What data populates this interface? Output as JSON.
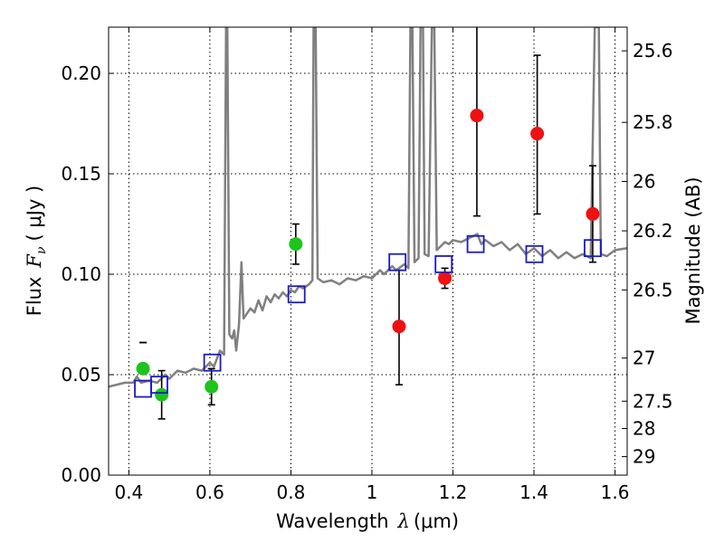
{
  "chart_data": {
    "type": "scatter",
    "title": "",
    "xlabel_prefix": "Wavelength",
    "xlabel_symbol": "λ",
    "xlabel_unit": "(μm)",
    "ylabel_prefix": "Flux",
    "ylabel_symbol": "F",
    "ylabel_subscript": "ν",
    "ylabel_unit": "( μJy )",
    "y2label": "Magnitude (AB)",
    "xlim": [
      0.35,
      1.63
    ],
    "ylim": [
      0.0,
      0.223
    ],
    "grid": true,
    "x_ticks": [
      0.4,
      0.6,
      0.8,
      1.0,
      1.2,
      1.4,
      1.6
    ],
    "x_tick_labels": [
      "0.4",
      "0.6",
      "0.8",
      "1",
      "1.2",
      "1.4",
      "1.6"
    ],
    "y_ticks": [
      0.0,
      0.05,
      0.1,
      0.15,
      0.2
    ],
    "y_tick_labels": [
      "0.00",
      "0.05",
      "0.10",
      "0.15",
      "0.20"
    ],
    "y2_ticks": [
      {
        "label": "25.6",
        "flux": 0.2112
      },
      {
        "label": "25.8",
        "flux": 0.1756
      },
      {
        "label": "26",
        "flux": 0.1462
      },
      {
        "label": "26.2",
        "flux": 0.1216
      },
      {
        "label": "26.5",
        "flux": 0.0922
      },
      {
        "label": "27",
        "flux": 0.0583
      },
      {
        "label": "27.5",
        "flux": 0.0368
      },
      {
        "label": "28",
        "flux": 0.0232
      },
      {
        "label": "29",
        "flux": 0.0092
      }
    ],
    "colors": {
      "model": "#808080",
      "green": "#1ec31e",
      "red": "#ee1111",
      "box": "#1a1acc",
      "errorbar": "#000000"
    },
    "series": [
      {
        "kind": "line",
        "points": [
          [
            0.35,
            0.044
          ],
          [
            0.37,
            0.045
          ],
          [
            0.39,
            0.046
          ],
          [
            0.41,
            0.046
          ],
          [
            0.42,
            0.049
          ],
          [
            0.43,
            0.046
          ],
          [
            0.45,
            0.047
          ],
          [
            0.47,
            0.046
          ],
          [
            0.49,
            0.05
          ],
          [
            0.5,
            0.048
          ],
          [
            0.52,
            0.052
          ],
          [
            0.54,
            0.051
          ],
          [
            0.56,
            0.053
          ],
          [
            0.58,
            0.052
          ],
          [
            0.6,
            0.056
          ],
          [
            0.61,
            0.054
          ],
          [
            0.625,
            0.062
          ],
          [
            0.635,
            0.06
          ],
          [
            0.64,
            0.223
          ],
          [
            0.643,
            0.223
          ],
          [
            0.648,
            0.07
          ],
          [
            0.655,
            0.068
          ],
          [
            0.66,
            0.072
          ],
          [
            0.665,
            0.062
          ],
          [
            0.672,
            0.075
          ],
          [
            0.678,
            0.106
          ],
          [
            0.683,
            0.078
          ],
          [
            0.69,
            0.08
          ],
          [
            0.7,
            0.083
          ],
          [
            0.71,
            0.081
          ],
          [
            0.72,
            0.087
          ],
          [
            0.73,
            0.082
          ],
          [
            0.74,
            0.089
          ],
          [
            0.75,
            0.086
          ],
          [
            0.76,
            0.09
          ],
          [
            0.77,
            0.088
          ],
          [
            0.78,
            0.091
          ],
          [
            0.79,
            0.089
          ],
          [
            0.8,
            0.092
          ],
          [
            0.81,
            0.091
          ],
          [
            0.82,
            0.094
          ],
          [
            0.83,
            0.093
          ],
          [
            0.845,
            0.095
          ],
          [
            0.853,
            0.097
          ],
          [
            0.856,
            0.223
          ],
          [
            0.861,
            0.223
          ],
          [
            0.866,
            0.098
          ],
          [
            0.88,
            0.096
          ],
          [
            0.9,
            0.097
          ],
          [
            0.92,
            0.095
          ],
          [
            0.94,
            0.098
          ],
          [
            0.96,
            0.097
          ],
          [
            0.98,
            0.099
          ],
          [
            1.0,
            0.098
          ],
          [
            1.02,
            0.102
          ],
          [
            1.03,
            0.1
          ],
          [
            1.05,
            0.104
          ],
          [
            1.06,
            0.102
          ],
          [
            1.08,
            0.105
          ],
          [
            1.09,
            0.103
          ],
          [
            1.095,
            0.223
          ],
          [
            1.1,
            0.223
          ],
          [
            1.105,
            0.106
          ],
          [
            1.115,
            0.108
          ],
          [
            1.12,
            0.223
          ],
          [
            1.126,
            0.223
          ],
          [
            1.13,
            0.11
          ],
          [
            1.14,
            0.109
          ],
          [
            1.148,
            0.223
          ],
          [
            1.154,
            0.223
          ],
          [
            1.16,
            0.112
          ],
          [
            1.17,
            0.114
          ],
          [
            1.18,
            0.116
          ],
          [
            1.19,
            0.115
          ],
          [
            1.2,
            0.117
          ],
          [
            1.22,
            0.116
          ],
          [
            1.24,
            0.118
          ],
          [
            1.26,
            0.12
          ],
          [
            1.27,
            0.115
          ],
          [
            1.28,
            0.117
          ],
          [
            1.3,
            0.114
          ],
          [
            1.32,
            0.116
          ],
          [
            1.34,
            0.112
          ],
          [
            1.36,
            0.115
          ],
          [
            1.38,
            0.11
          ],
          [
            1.4,
            0.113
          ],
          [
            1.42,
            0.109
          ],
          [
            1.44,
            0.112
          ],
          [
            1.46,
            0.108
          ],
          [
            1.48,
            0.111
          ],
          [
            1.5,
            0.108
          ],
          [
            1.52,
            0.11
          ],
          [
            1.54,
            0.108
          ],
          [
            1.55,
            0.223
          ],
          [
            1.56,
            0.223
          ],
          [
            1.565,
            0.11
          ],
          [
            1.58,
            0.109
          ],
          [
            1.6,
            0.112
          ],
          [
            1.63,
            0.113
          ]
        ]
      },
      {
        "kind": "points",
        "marker": "circle",
        "color_key": "green",
        "points": [
          {
            "x": 0.435,
            "y": 0.053,
            "err_lo": 0.066,
            "err_hi": 0.066
          },
          {
            "x": 0.481,
            "y": 0.04,
            "err_lo": 0.028,
            "err_hi": 0.052
          },
          {
            "x": 0.604,
            "y": 0.044,
            "err_lo": 0.035,
            "err_hi": 0.053
          },
          {
            "x": 0.812,
            "y": 0.115,
            "err_lo": 0.105,
            "err_hi": 0.125
          }
        ]
      },
      {
        "kind": "points",
        "marker": "circle",
        "color_key": "red",
        "points": [
          {
            "x": 1.067,
            "y": 0.074,
            "err_lo": 0.045,
            "err_hi": 0.102
          },
          {
            "x": 1.18,
            "y": 0.098,
            "err_lo": 0.093,
            "err_hi": 0.103
          },
          {
            "x": 1.259,
            "y": 0.179,
            "err_lo": 0.129,
            "err_hi": 0.229
          },
          {
            "x": 1.408,
            "y": 0.17,
            "err_lo": 0.13,
            "err_hi": 0.209
          },
          {
            "x": 1.545,
            "y": 0.13,
            "err_lo": 0.106,
            "err_hi": 0.154
          }
        ]
      },
      {
        "kind": "points",
        "marker": "square",
        "color_key": "box",
        "points": [
          {
            "x": 0.435,
            "y": 0.043
          },
          {
            "x": 0.475,
            "y": 0.045
          },
          {
            "x": 0.606,
            "y": 0.056
          },
          {
            "x": 0.814,
            "y": 0.09
          },
          {
            "x": 1.063,
            "y": 0.106
          },
          {
            "x": 1.177,
            "y": 0.105
          },
          {
            "x": 1.256,
            "y": 0.115
          },
          {
            "x": 1.401,
            "y": 0.11
          },
          {
            "x": 1.545,
            "y": 0.113
          }
        ]
      }
    ]
  }
}
